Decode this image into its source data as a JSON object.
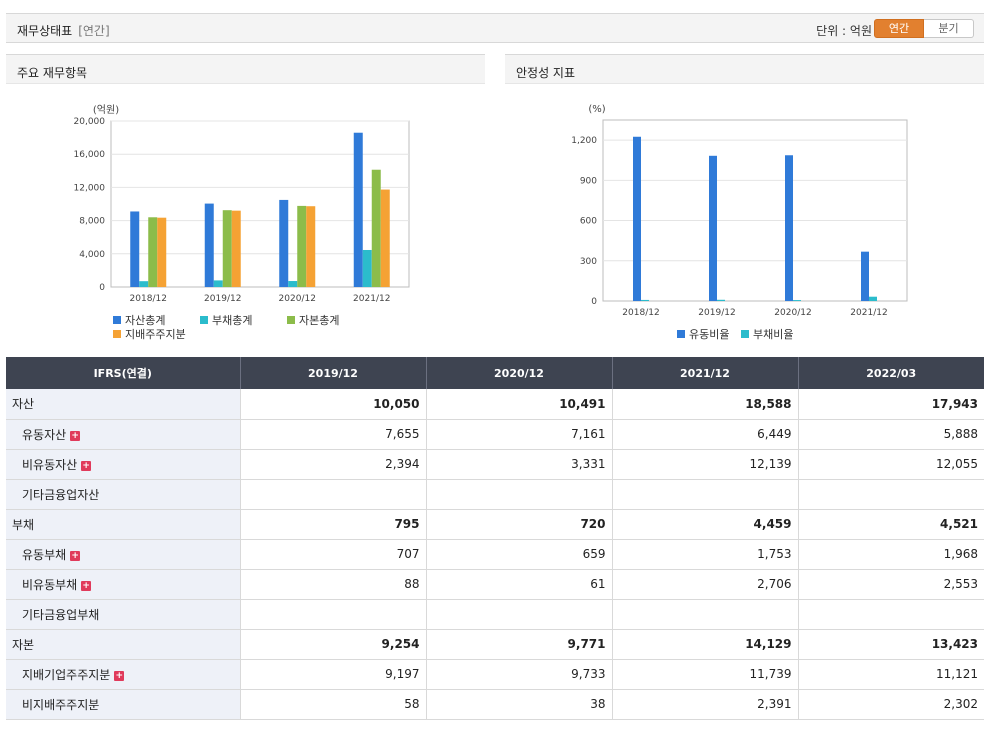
{
  "header": {
    "title": "재무상태표",
    "subtitle": "[연간]",
    "unit_label": "단위 : 억원",
    "toggle_annual": "연간",
    "toggle_quarter": "분기"
  },
  "colors": {
    "blue": "#2f7ad8",
    "cyan": "#2bbccc",
    "green": "#8cbc4a",
    "orange": "#f5a234",
    "accent": "#e2802f",
    "table_header": "#3e4451"
  },
  "panels": {
    "left_title": "주요 재무항목",
    "right_title": "안정성 지표"
  },
  "chart_data": [
    {
      "type": "bar",
      "title": "주요 재무항목",
      "ylabel": "(억원)",
      "categories": [
        "2018/12",
        "2019/12",
        "2020/12",
        "2021/12"
      ],
      "ylim": [
        0,
        20000
      ],
      "yticks": [
        0,
        4000,
        8000,
        12000,
        16000,
        20000
      ],
      "ytick_labels": [
        "0",
        "4,000",
        "8,000",
        "12,000",
        "16,000",
        "20,000"
      ],
      "grid": true,
      "legend_position": "bottom-left",
      "series": [
        {
          "name": "자산총계",
          "color": "#2f7ad8",
          "values": [
            9100,
            10050,
            10491,
            18588
          ]
        },
        {
          "name": "부채총계",
          "color": "#2bbccc",
          "values": [
            700,
            795,
            720,
            4459
          ]
        },
        {
          "name": "자본총계",
          "color": "#8cbc4a",
          "values": [
            8400,
            9254,
            9771,
            14129
          ]
        },
        {
          "name": "지배주주지분",
          "color": "#f5a234",
          "values": [
            8350,
            9197,
            9733,
            11739
          ]
        }
      ]
    },
    {
      "type": "bar",
      "title": "안정성 지표",
      "ylabel": "(%)",
      "categories": [
        "2018/12",
        "2019/12",
        "2020/12",
        "2021/12"
      ],
      "ylim": [
        0,
        1350
      ],
      "yticks": [
        0,
        300,
        600,
        900,
        1200
      ],
      "ytick_labels": [
        "0",
        "300",
        "600",
        "900",
        "1,200"
      ],
      "grid": true,
      "legend_position": "bottom-center",
      "series": [
        {
          "name": "유동비율",
          "color": "#2f7ad8",
          "values": [
            1225,
            1083,
            1087,
            368
          ]
        },
        {
          "name": "부채비율",
          "color": "#2bbccc",
          "values": [
            8,
            9,
            7,
            32
          ]
        }
      ]
    }
  ],
  "table": {
    "header": [
      "IFRS(연결)",
      "2019/12",
      "2020/12",
      "2021/12",
      "2022/03"
    ],
    "rows": [
      {
        "label": "자산",
        "main": true,
        "plus": false,
        "values": [
          "10,050",
          "10,491",
          "18,588",
          "17,943"
        ]
      },
      {
        "label": "유동자산",
        "main": false,
        "plus": true,
        "values": [
          "7,655",
          "7,161",
          "6,449",
          "5,888"
        ]
      },
      {
        "label": "비유동자산",
        "main": false,
        "plus": true,
        "values": [
          "2,394",
          "3,331",
          "12,139",
          "12,055"
        ]
      },
      {
        "label": "기타금융업자산",
        "main": false,
        "plus": false,
        "values": [
          "",
          "",
          "",
          ""
        ]
      },
      {
        "label": "부채",
        "main": true,
        "plus": false,
        "values": [
          "795",
          "720",
          "4,459",
          "4,521"
        ]
      },
      {
        "label": "유동부채",
        "main": false,
        "plus": true,
        "values": [
          "707",
          "659",
          "1,753",
          "1,968"
        ]
      },
      {
        "label": "비유동부채",
        "main": false,
        "plus": true,
        "values": [
          "88",
          "61",
          "2,706",
          "2,553"
        ]
      },
      {
        "label": "기타금융업부채",
        "main": false,
        "plus": false,
        "values": [
          "",
          "",
          "",
          ""
        ]
      },
      {
        "label": "자본",
        "main": true,
        "plus": false,
        "values": [
          "9,254",
          "9,771",
          "14,129",
          "13,423"
        ]
      },
      {
        "label": "지배기업주주지분",
        "main": false,
        "plus": true,
        "values": [
          "9,197",
          "9,733",
          "11,739",
          "11,121"
        ]
      },
      {
        "label": "비지배주주지분",
        "main": false,
        "plus": false,
        "values": [
          "58",
          "38",
          "2,391",
          "2,302"
        ]
      }
    ]
  }
}
